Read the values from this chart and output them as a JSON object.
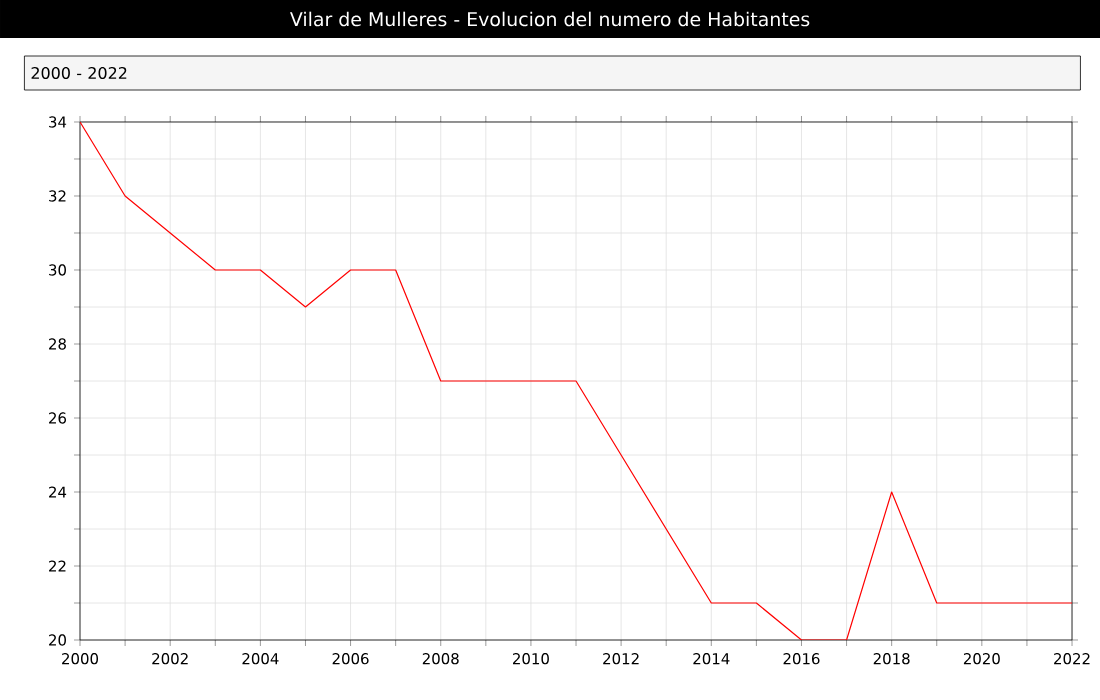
{
  "chart_data": {
    "type": "line",
    "title": "Vilar de Mulleres - Evolucion del numero de Habitantes",
    "annotations": [
      "2000 - 2022"
    ],
    "x": [
      2000,
      2001,
      2002,
      2003,
      2004,
      2005,
      2006,
      2007,
      2008,
      2009,
      2010,
      2011,
      2012,
      2013,
      2014,
      2015,
      2016,
      2017,
      2018,
      2019,
      2020,
      2021,
      2022
    ],
    "series": [
      {
        "color": "#ff0000",
        "values": [
          34,
          32,
          31,
          30,
          30,
          29,
          30,
          30,
          27,
          27,
          27,
          27,
          25,
          23,
          21,
          21,
          20,
          20,
          24,
          21,
          21,
          21,
          21
        ]
      }
    ],
    "xlim": [
      2000,
      2022
    ],
    "ylim": [
      20,
      34
    ],
    "xticks": [
      2000,
      {
        "value": 2001,
        "label": null
      },
      2002,
      {
        "value": 2003,
        "label": null
      },
      2004,
      {
        "value": 2005,
        "label": null
      },
      2006,
      {
        "value": 2007,
        "label": null
      },
      2008,
      {
        "value": 2009,
        "label": null
      },
      2010,
      {
        "value": 2011,
        "label": null
      },
      2012,
      {
        "value": 2013,
        "label": null
      },
      2014,
      {
        "value": 2015,
        "label": null
      },
      2016,
      {
        "value": 2017,
        "label": null
      },
      2018,
      {
        "value": 2019,
        "label": null
      },
      2020,
      {
        "value": 2021,
        "label": null
      },
      2022
    ],
    "yticks": [
      20,
      {
        "value": 21,
        "label": null
      },
      22,
      {
        "value": 23,
        "label": null
      },
      24,
      {
        "value": 25,
        "label": null
      },
      26,
      {
        "value": 27,
        "label": null
      },
      28,
      {
        "value": 29,
        "label": null
      },
      30,
      {
        "value": 31,
        "label": null
      },
      32,
      {
        "value": 33,
        "label": null
      },
      34
    ],
    "grid": true,
    "marker": "none",
    "line_style": "solid"
  }
}
